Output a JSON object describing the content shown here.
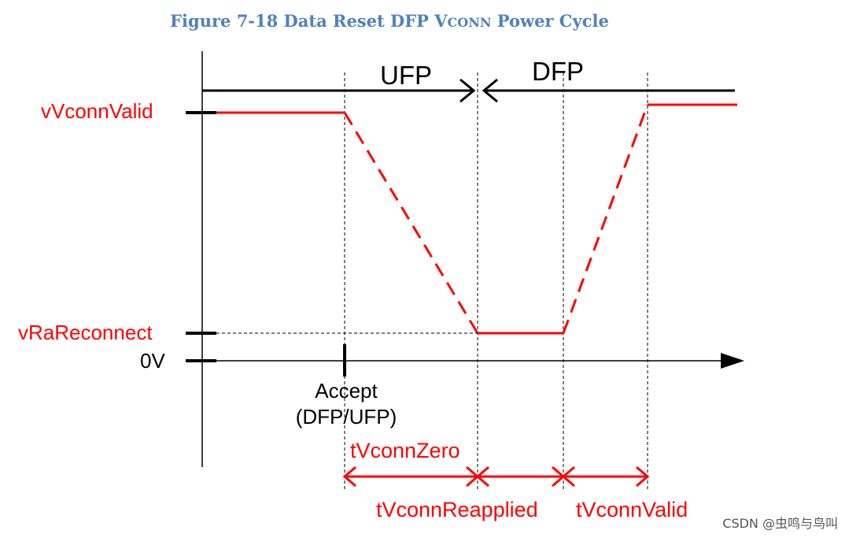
{
  "caption": {
    "prefix": "Figure 7-18 Data Reset DFP ",
    "vconn_v": "V",
    "vconn_rest": "CONN",
    "suffix": " Power Cycle"
  },
  "roles": {
    "ufp": "UFP",
    "dfp": "DFP"
  },
  "levels": {
    "valid": "vVconnValid",
    "reconnect": "vRaReconnect",
    "zero": "0V"
  },
  "event": {
    "line1": "Accept",
    "line2": "(DFP/UFP)"
  },
  "timings": {
    "zero": "tVconnZero",
    "reapplied": "tVconnReapplied",
    "valid": "tVconnValid"
  },
  "colors": {
    "signal": "#ff0000",
    "caption": "#4f81bd",
    "axis": "#000000"
  },
  "watermark": "CSDN @虫鸣与鸟叫"
}
